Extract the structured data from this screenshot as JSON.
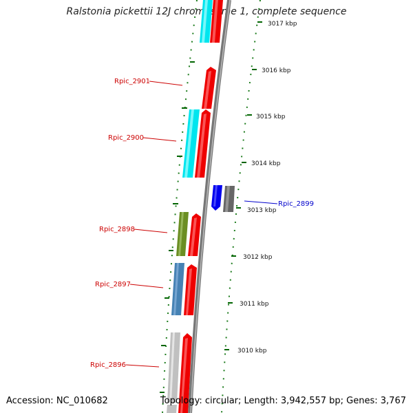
{
  "title": "Ralstonia pickettii 12J chromosome 1, complete sequence",
  "accession": "Accession: NC_010682",
  "topology": "Topology: circular; Length: 3,942,557 bp; Genes: 3,767",
  "colors": {
    "cyan": "#00e5ee",
    "red": "#ee0000",
    "olive": "#6b8e23",
    "steel": "#4682b4",
    "silver": "#c0c0c0",
    "blue": "#0000ee",
    "grey": "#666666",
    "label_red": "#cc0000",
    "label_blue": "#0000cc",
    "tick_green": "#006400"
  },
  "kbp_ticks": [
    "3017 kbp",
    "3016 kbp",
    "3015 kbp",
    "3014 kbp",
    "3013 kbp",
    "3012 kbp",
    "3011 kbp",
    "3010 kbp"
  ],
  "gene_labels": [
    {
      "text": "Rpic_2901",
      "color": "label_red"
    },
    {
      "text": "Rpic_2900",
      "color": "label_red"
    },
    {
      "text": "Rpic_2898",
      "color": "label_red"
    },
    {
      "text": "Rpic_2897",
      "color": "label_red"
    },
    {
      "text": "Rpic_2896",
      "color": "label_red"
    },
    {
      "text": "Rpic_2899",
      "color": "label_blue"
    }
  ]
}
